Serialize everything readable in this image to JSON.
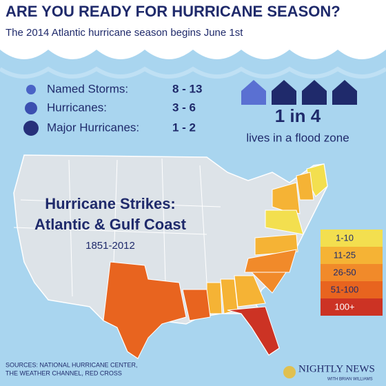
{
  "header": {
    "title": "ARE YOU READY FOR HURRICANE SEASON?",
    "subtitle": "The 2014 Atlantic hurricane season begins June 1st"
  },
  "forecast": [
    {
      "label": "Named Storms:",
      "value": "8 - 13"
    },
    {
      "label": "Hurricanes:",
      "value": "3 - 6"
    },
    {
      "label": "Major Hurricanes:",
      "value": "1 - 2"
    }
  ],
  "flood": {
    "stat": "1 in 4",
    "text": "lives in a flood zone"
  },
  "map": {
    "title_lines": [
      "Hurricane Strikes:",
      "Atlantic & Gulf Coast"
    ],
    "years": "1851-2012",
    "legend": [
      {
        "label": "1-10",
        "color": "#f3df4f"
      },
      {
        "label": "11-25",
        "color": "#f5b335"
      },
      {
        "label": "26-50",
        "color": "#f18a2a"
      },
      {
        "label": "51-100",
        "color": "#e8641f"
      },
      {
        "label": "100+",
        "color": "#cc3324"
      }
    ]
  },
  "sources": [
    "SOURCES: NATIONAL HURRICANE CENTER,",
    "THE WEATHER CHANNEL, RED CROSS"
  ],
  "logo": {
    "name": "NIGHTLY NEWS",
    "host": "WITH BRIAN WILLIAMS"
  }
}
